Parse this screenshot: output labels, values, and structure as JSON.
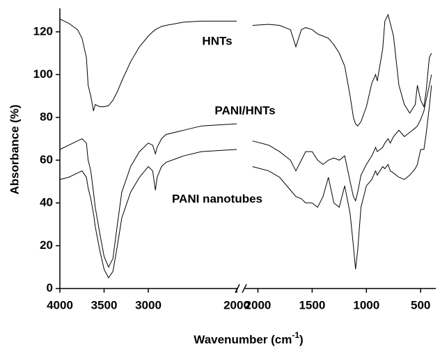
{
  "chart_data": {
    "type": "line",
    "x_label": "Wavenumber (cm",
    "x_label_sup": "-1",
    "x_label_end": ")",
    "y_label": "Absorbance (%)",
    "ylim": [
      0,
      130
    ],
    "yticks": [
      0,
      20,
      40,
      60,
      80,
      100,
      120
    ],
    "xlim": [
      [
        4000,
        2000
      ],
      [
        2080,
        360
      ]
    ],
    "xticks": [
      [
        4000,
        3500,
        3000,
        2000
      ],
      [
        2000,
        1500,
        1000,
        500
      ]
    ],
    "x": [
      [
        4000,
        3900,
        3800,
        3750,
        3700,
        3680,
        3650,
        3620,
        3600,
        3550,
        3500,
        3450,
        3400,
        3350,
        3300,
        3200,
        3100,
        3000,
        2950,
        2920,
        2900,
        2850,
        2800,
        2600,
        2400,
        2200,
        2000
      ],
      [
        2050,
        1900,
        1800,
        1700,
        1650,
        1600,
        1560,
        1500,
        1450,
        1400,
        1350,
        1300,
        1250,
        1200,
        1150,
        1120,
        1100,
        1080,
        1050,
        1000,
        950,
        915,
        900,
        850,
        830,
        800,
        780,
        750,
        700,
        650,
        600,
        550,
        530,
        500,
        470,
        450,
        420,
        400
      ]
    ],
    "series": [
      {
        "name": "HNTs",
        "color": "#000000",
        "values": [
          [
            126,
            124,
            121,
            117,
            108,
            95,
            90,
            83,
            86,
            85,
            85,
            85.5,
            88,
            92,
            97,
            106,
            113,
            118,
            120,
            121,
            121.5,
            122.5,
            123,
            124.5,
            125,
            125,
            125
          ],
          [
            123,
            123.5,
            123,
            121,
            113,
            121,
            122,
            121,
            119,
            118,
            117,
            114,
            110,
            104,
            90,
            80,
            77,
            76,
            78,
            85,
            96,
            100,
            97,
            112,
            125,
            128,
            124,
            118,
            95,
            86,
            82,
            86,
            95,
            88,
            85,
            92,
            108,
            110
          ]
        ]
      },
      {
        "name": "PANI/HNTs",
        "color": "#000000",
        "values": [
          [
            65,
            67,
            69,
            70,
            68,
            60,
            55,
            45,
            38,
            26,
            15,
            10,
            14,
            30,
            45,
            57,
            64,
            68,
            67,
            63,
            66,
            70,
            72,
            74,
            76,
            76.5,
            77
          ],
          [
            69,
            67,
            64,
            60,
            55,
            60,
            64,
            64,
            60,
            58,
            60,
            61,
            60,
            62,
            50,
            43,
            41,
            45,
            53,
            58,
            62,
            66,
            64,
            66,
            68,
            70,
            68,
            71,
            74,
            71,
            73,
            75,
            76,
            79,
            83,
            88,
            95,
            100
          ]
        ]
      },
      {
        "name": "PANI nanotubes",
        "color": "#000000",
        "values": [
          [
            51,
            52,
            54,
            55,
            52,
            47,
            42,
            35,
            29,
            18,
            9,
            5,
            8,
            20,
            33,
            45,
            52,
            57,
            55,
            46,
            52,
            57,
            59,
            62,
            64,
            64.5,
            65
          ],
          [
            57,
            55,
            52,
            46,
            43,
            42,
            40,
            40,
            38,
            43,
            52,
            40,
            38,
            48,
            35,
            20,
            9,
            18,
            38,
            48,
            51,
            55,
            53,
            57,
            56,
            58,
            55,
            54,
            52,
            51,
            53,
            56,
            58,
            65,
            65,
            72,
            85,
            95
          ]
        ]
      }
    ]
  }
}
